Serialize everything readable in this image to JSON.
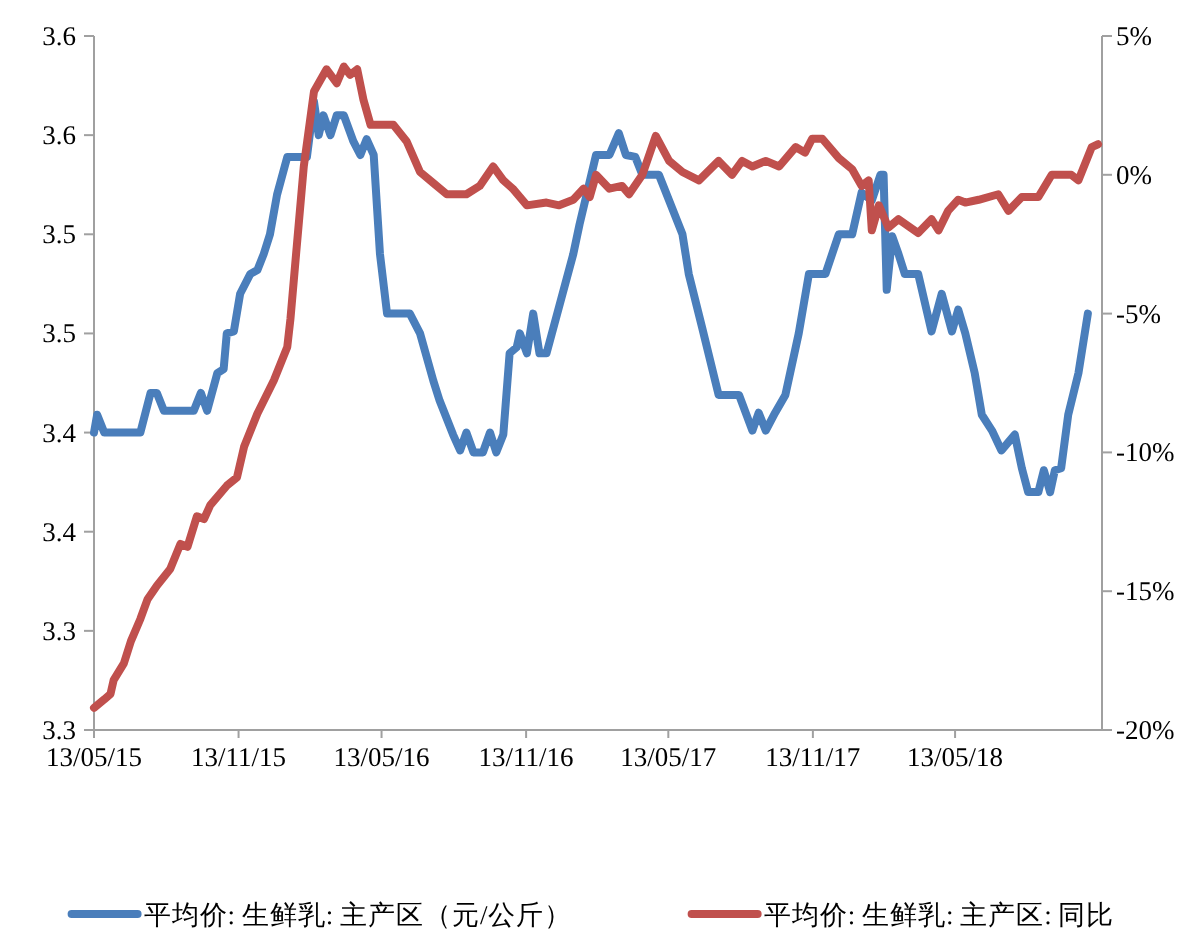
{
  "chart_data": {
    "type": "line",
    "legend": "bottom",
    "xlim": [
      "2015-05-13",
      "2018-11-16"
    ],
    "xticks": [
      {
        "value": "2015-05-13",
        "label": "13/05/15"
      },
      {
        "value": "2015-11-13",
        "label": "13/11/15"
      },
      {
        "value": "2016-05-13",
        "label": "13/05/16"
      },
      {
        "value": "2016-11-13",
        "label": "13/11/16"
      },
      {
        "value": "2017-05-13",
        "label": "13/05/17"
      },
      {
        "value": "2017-11-13",
        "label": "13/11/17"
      },
      {
        "value": "2018-05-13",
        "label": "13/05/18"
      }
    ],
    "ylim": [
      3.3,
      3.65
    ],
    "yticks": [
      {
        "value": 3.3,
        "label": "3.3"
      },
      {
        "value": 3.35,
        "label": "3.3"
      },
      {
        "value": 3.4,
        "label": "3.4"
      },
      {
        "value": 3.45,
        "label": "3.4"
      },
      {
        "value": 3.5,
        "label": "3.5"
      },
      {
        "value": 3.55,
        "label": "3.5"
      },
      {
        "value": 3.6,
        "label": "3.6"
      },
      {
        "value": 3.65,
        "label": "3.6"
      }
    ],
    "y2lim": [
      -20,
      5
    ],
    "y2ticks": [
      {
        "value": -20,
        "label": "-20%"
      },
      {
        "value": -15,
        "label": "-15%"
      },
      {
        "value": -10,
        "label": "-10%"
      },
      {
        "value": -5,
        "label": "-5%"
      },
      {
        "value": 0,
        "label": "0%"
      },
      {
        "value": 5,
        "label": "5%"
      }
    ],
    "series": [
      {
        "name": "平均价: 生鲜乳: 主产区（元/公斤）",
        "color": "#4a7ebb",
        "x": [
          "2015-05-13",
          "2015-05-17",
          "2015-05-26",
          "2015-07-11",
          "2015-07-24",
          "2015-08-01",
          "2015-08-10",
          "2015-09-17",
          "2015-09-26",
          "2015-10-04",
          "2015-10-17",
          "2015-10-25",
          "2015-10-29",
          "2015-11-07",
          "2015-11-15",
          "2015-11-28",
          "2015-12-07",
          "2015-12-15",
          "2015-12-23",
          "2016-01-01",
          "2016-01-14",
          "2016-02-08",
          "2016-02-17",
          "2016-02-23",
          "2016-02-29",
          "2016-03-09",
          "2016-03-17",
          "2016-03-26",
          "2016-04-07",
          "2016-04-16",
          "2016-04-24",
          "2016-05-03",
          "2016-05-11",
          "2016-05-20",
          "2016-06-18",
          "2016-07-01",
          "2016-07-18",
          "2016-07-26",
          "2016-08-12",
          "2016-08-21",
          "2016-08-29",
          "2016-09-07",
          "2016-09-19",
          "2016-09-28",
          "2016-10-06",
          "2016-10-15",
          "2016-10-23",
          "2016-11-01",
          "2016-11-05",
          "2016-11-14",
          "2016-11-22",
          "2016-11-30",
          "2016-12-09",
          "2017-01-12",
          "2017-01-20",
          "2017-01-29",
          "2017-02-10",
          "2017-02-27",
          "2017-03-11",
          "2017-03-20",
          "2017-04-01",
          "2017-04-10",
          "2017-05-01",
          "2017-05-14",
          "2017-05-31",
          "2017-06-08",
          "2017-06-25",
          "2017-07-16",
          "2017-08-11",
          "2017-08-28",
          "2017-09-05",
          "2017-09-14",
          "2017-09-26",
          "2017-10-09",
          "2017-10-26",
          "2017-11-08",
          "2017-11-29",
          "2017-12-16",
          "2018-01-02",
          "2018-01-14",
          "2018-01-27",
          "2018-02-07",
          "2018-02-11",
          "2018-02-15",
          "2018-02-22",
          "2018-03-02",
          "2018-03-10",
          "2018-03-27",
          "2018-04-13",
          "2018-04-26",
          "2018-05-09",
          "2018-05-17",
          "2018-05-26",
          "2018-06-07",
          "2018-06-16",
          "2018-06-29",
          "2018-07-11",
          "2018-07-28",
          "2018-08-06",
          "2018-08-14",
          "2018-08-27",
          "2018-09-03",
          "2018-09-11",
          "2018-09-17",
          "2018-09-25",
          "2018-10-04",
          "2018-10-17",
          "2018-10-29"
        ],
        "values": [
          3.45,
          3.459,
          3.45,
          3.45,
          3.47,
          3.47,
          3.461,
          3.461,
          3.47,
          3.461,
          3.48,
          3.482,
          3.5,
          3.501,
          3.52,
          3.53,
          3.532,
          3.54,
          3.55,
          3.57,
          3.589,
          3.589,
          3.617,
          3.6,
          3.61,
          3.6,
          3.61,
          3.61,
          3.597,
          3.59,
          3.598,
          3.59,
          3.54,
          3.51,
          3.51,
          3.5,
          3.476,
          3.466,
          3.449,
          3.441,
          3.45,
          3.44,
          3.44,
          3.45,
          3.44,
          3.449,
          3.49,
          3.493,
          3.5,
          3.49,
          3.51,
          3.49,
          3.49,
          3.54,
          3.555,
          3.57,
          3.59,
          3.59,
          3.601,
          3.59,
          3.589,
          3.58,
          3.58,
          3.567,
          3.55,
          3.53,
          3.503,
          3.469,
          3.469,
          3.451,
          3.46,
          3.451,
          3.46,
          3.469,
          3.5,
          3.53,
          3.53,
          3.55,
          3.55,
          3.571,
          3.567,
          3.58,
          3.58,
          3.522,
          3.549,
          3.54,
          3.53,
          3.53,
          3.501,
          3.52,
          3.501,
          3.512,
          3.5,
          3.48,
          3.459,
          3.451,
          3.441,
          3.449,
          3.432,
          3.42,
          3.42,
          3.431,
          3.42,
          3.431,
          3.432,
          3.459,
          3.48,
          3.51
        ]
      },
      {
        "name": "平均价: 生鲜乳: 主产区: 同比",
        "color": "#c0504d",
        "axis": "y2",
        "x": [
          "2015-05-13",
          "2015-05-26",
          "2015-06-03",
          "2015-06-07",
          "2015-06-20",
          "2015-06-29",
          "2015-07-11",
          "2015-07-20",
          "2015-08-01",
          "2015-08-18",
          "2015-08-31",
          "2015-09-09",
          "2015-09-21",
          "2015-09-30",
          "2015-10-08",
          "2015-10-29",
          "2015-11-11",
          "2015-11-20",
          "2015-12-07",
          "2015-12-28",
          "2016-01-14",
          "2016-01-18",
          "2016-01-26",
          "2016-02-04",
          "2016-02-17",
          "2016-03-04",
          "2016-03-17",
          "2016-03-26",
          "2016-04-03",
          "2016-04-12",
          "2016-04-20",
          "2016-04-29",
          "2016-05-28",
          "2016-06-14",
          "2016-07-01",
          "2016-07-18",
          "2016-08-04",
          "2016-08-29",
          "2016-09-15",
          "2016-10-02",
          "2016-10-15",
          "2016-10-27",
          "2016-11-14",
          "2016-12-09",
          "2016-12-25",
          "2017-01-12",
          "2017-01-25",
          "2017-02-02",
          "2017-02-10",
          "2017-02-27",
          "2017-03-15",
          "2017-03-24",
          "2017-04-10",
          "2017-04-27",
          "2017-05-14",
          "2017-05-31",
          "2017-06-21",
          "2017-07-16",
          "2017-08-02",
          "2017-08-15",
          "2017-08-28",
          "2017-09-14",
          "2017-10-01",
          "2017-10-22",
          "2017-11-03",
          "2017-11-12",
          "2017-11-25",
          "2017-12-16",
          "2018-01-02",
          "2018-01-14",
          "2018-01-23",
          "2018-01-27",
          "2018-02-05",
          "2018-02-17",
          "2018-03-02",
          "2018-03-27",
          "2018-04-13",
          "2018-04-22",
          "2018-05-04",
          "2018-05-17",
          "2018-05-26",
          "2018-06-12",
          "2018-07-07",
          "2018-07-20",
          "2018-08-06",
          "2018-08-27",
          "2018-09-13",
          "2018-10-08",
          "2018-10-17",
          "2018-11-03",
          "2018-11-11"
        ],
        "values": [
          -19.2,
          -18.9,
          -18.7,
          -18.2,
          -17.6,
          -16.8,
          -16,
          -15.3,
          -14.8,
          -14.2,
          -13.3,
          -13.4,
          -12.3,
          -12.4,
          -11.9,
          -11.2,
          -10.9,
          -9.8,
          -8.6,
          -7.4,
          -6.2,
          -5.2,
          -2.6,
          0.3,
          3,
          3.8,
          3.3,
          3.9,
          3.6,
          3.8,
          2.7,
          1.8,
          1.8,
          1.2,
          0.1,
          -0.3,
          -0.7,
          -0.7,
          -0.4,
          0.3,
          -0.2,
          -0.5,
          -1.1,
          -1,
          -1.1,
          -0.9,
          -0.5,
          -0.8,
          0,
          -0.5,
          -0.4,
          -0.7,
          0,
          1.4,
          0.5,
          0.1,
          -0.2,
          0.5,
          0,
          0.5,
          0.3,
          0.5,
          0.3,
          1,
          0.8,
          1.3,
          1.3,
          0.6,
          0.2,
          -0.4,
          -0.2,
          -2,
          -1.1,
          -1.9,
          -1.6,
          -2.1,
          -1.6,
          -2,
          -1.3,
          -0.9,
          -1,
          -0.9,
          -0.7,
          -1.3,
          -0.8,
          -0.8,
          0,
          0,
          -0.2,
          1,
          1.1
        ]
      }
    ]
  }
}
